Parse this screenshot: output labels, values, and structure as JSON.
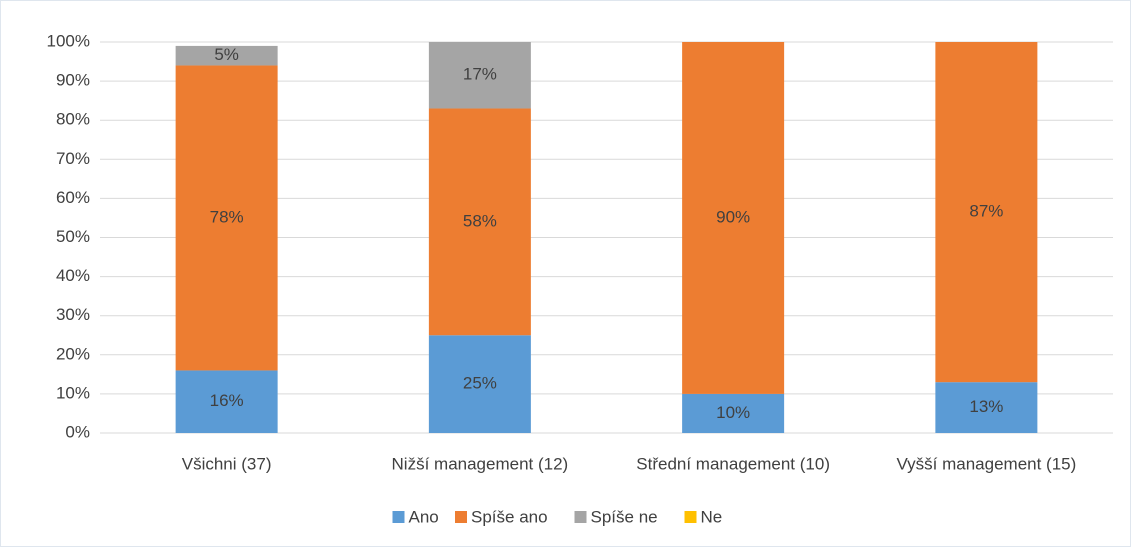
{
  "chart_data": {
    "type": "stacked_bar",
    "categories": [
      "Všichni (37)",
      "Nižší management (12)",
      "Střední management (10)",
      "Vyšší management (15)"
    ],
    "series": [
      {
        "name": "Ano",
        "color": "#5b9bd5",
        "values": [
          16,
          25,
          10,
          13
        ],
        "value_labels": [
          "16%",
          "25%",
          "10%",
          "13%"
        ]
      },
      {
        "name": "Spíše ano",
        "color": "#ed7d31",
        "values": [
          78,
          58,
          90,
          87
        ],
        "value_labels": [
          "78%",
          "58%",
          "90%",
          "87%"
        ]
      },
      {
        "name": "Spíše ne",
        "color": "#a5a5a5",
        "values": [
          5,
          17,
          0,
          0
        ],
        "value_labels": [
          "5%",
          "17%",
          null,
          null
        ]
      },
      {
        "name": "Ne",
        "color": "#ffc000",
        "values": [
          0,
          0,
          0,
          0
        ]
      }
    ],
    "ylim": [
      0,
      100
    ],
    "yticks": [
      {
        "value": 0,
        "label": "0%"
      },
      {
        "value": 10,
        "label": "10%"
      },
      {
        "value": 20,
        "label": "20%"
      },
      {
        "value": 30,
        "label": "30%"
      },
      {
        "value": 40,
        "label": "40%"
      },
      {
        "value": 50,
        "label": "50%"
      },
      {
        "value": 60,
        "label": "60%"
      },
      {
        "value": 70,
        "label": "70%"
      },
      {
        "value": 80,
        "label": "80%"
      },
      {
        "value": 90,
        "label": "90%"
      },
      {
        "value": 100,
        "label": "100%"
      }
    ],
    "grid": true,
    "legend": "bottom"
  }
}
